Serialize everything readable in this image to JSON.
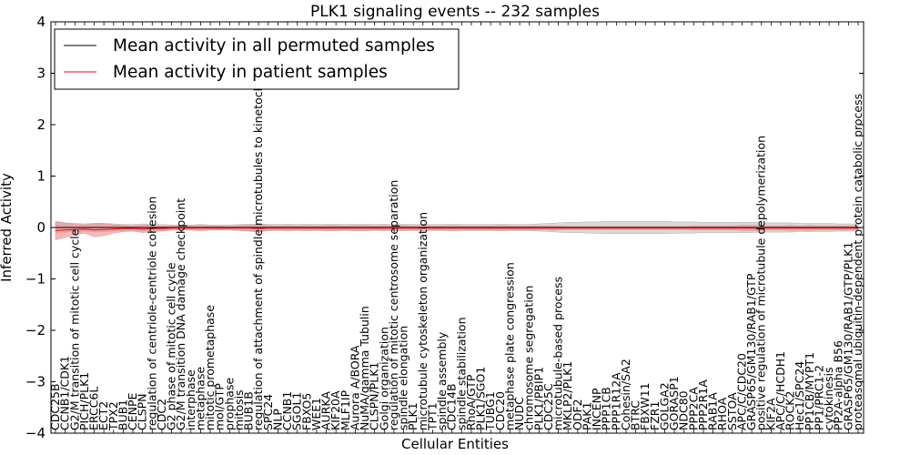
{
  "chart_data": {
    "type": "line",
    "title": "PLK1 signaling events -- 232 samples",
    "xlabel": "Cellular Entities",
    "ylabel": "Inferred Activity",
    "ylim": [
      -4,
      4
    ],
    "yticks": [
      -4,
      -3,
      -2,
      -1,
      0,
      1,
      2,
      3,
      4
    ],
    "legend_position": "top-left",
    "colors": {
      "permuted": "#000000",
      "patient": "#ff0000",
      "band_permuted": "#c8c8c8",
      "band_patient": "#f08080"
    },
    "series": [
      {
        "name": "Mean activity in all permuted samples",
        "color": "#000000"
      },
      {
        "name": "Mean activity in patient samples",
        "color": "#ff0000"
      }
    ],
    "entities": [
      "CDC25B",
      "CCNB1/CDK1",
      "G2/M transition of mitotic cell cycle",
      "PICH/PLK1",
      "ERCC6L",
      "ECT2",
      "TPX2",
      "BUB1",
      "CENPE",
      "CLSPN",
      "regulation of centriole-centriole cohesion",
      "CDC2",
      "G2 phase of mitotic cell cycle",
      "G2/M transition DNA damage checkpoint",
      "interphase",
      "metaphase",
      "mitotic prometaphase",
      "mol/GTP",
      "prophase",
      "mitosis",
      "BUB1B",
      "regulation of attachment of spindle microtubules to kinetochore",
      "SPC24",
      "NLP",
      "CCNB1",
      "SGOL1",
      "FBXO5",
      "WEE1",
      "AURKA",
      "KIF20A",
      "MLF1IP",
      "Aurora A/BORA",
      "NuMA/gamma Tubulin",
      "CLSPN/PLK1",
      "Golgi organization",
      "regulation of mitotic centrosome separation",
      "spindle elongation",
      "PLK1",
      "microtubule cytoskeleton organization",
      "TPT1",
      "spindle assembly",
      "CDC14B",
      "spindle stabilization",
      "RhoA/GTP",
      "PLK1/SGO1",
      "TUBG1",
      "CDC20",
      "metaphase plate congression",
      "NUDC",
      "chromosome segregation",
      "PLK1/PBIP1",
      "CDC25C",
      "microtubule-based process",
      "MKLP2/PLK1",
      "ODF2",
      "PAK1",
      "INCENP",
      "PPP1CB",
      "PPP1R12A",
      "Cohesin/SA2",
      "BTRC",
      "FBXW11",
      "FZR1",
      "GOLGA2",
      "GORASP1",
      "NDC80",
      "PPP2CA",
      "PPP2R1A",
      "RAB1A",
      "RHOA",
      "SSTOA",
      "APC/C/CDC20",
      "GRASP65/GM130/RAB1/GTP",
      "positive regulation of microtubule depolymerization",
      "KIF2A",
      "APC/C/HCDH1",
      "ROCK2",
      "Hec1/SPC24",
      "PP1CB/MYPT1",
      "PP1/PRC1-2",
      "cytokinesis",
      "PP2A-alpha B56",
      "GRASP65/GM130/RAB1/GTP/PLK1",
      "proteasomal ubiquitin-dependent protein catabolic process"
    ],
    "patient_mean": [
      -0.06,
      -0.05,
      -0.04,
      -0.03,
      -0.05,
      -0.04,
      -0.03,
      -0.02,
      -0.02,
      -0.03,
      -0.02,
      -0.02,
      -0.01,
      -0.01,
      -0.01,
      -0.01,
      -0.01,
      -0.01,
      -0.01,
      -0.01,
      -0.01,
      -0.02,
      -0.01,
      -0.01,
      -0.01,
      -0.01,
      -0.01,
      -0.01,
      -0.01,
      -0.01,
      -0.01,
      -0.01,
      -0.01,
      -0.01,
      -0.01,
      -0.01,
      -0.01,
      -0.01,
      -0.01,
      -0.01,
      -0.01,
      -0.01,
      -0.01,
      -0.01,
      -0.01,
      -0.01,
      -0.01,
      -0.01,
      -0.01,
      -0.01,
      -0.01,
      -0.01,
      -0.01,
      -0.01,
      -0.01,
      -0.01,
      -0.01,
      -0.01,
      -0.01,
      -0.01,
      -0.01,
      -0.01,
      -0.01,
      -0.01,
      -0.01,
      -0.01,
      -0.01,
      -0.01,
      -0.01,
      -0.01,
      -0.01,
      -0.01,
      -0.01,
      -0.01,
      -0.01,
      -0.01,
      -0.01,
      -0.01,
      -0.01,
      -0.01,
      -0.01,
      -0.01,
      -0.01,
      -0.01
    ],
    "patient_spread": [
      0.18,
      0.14,
      0.1,
      0.08,
      0.13,
      0.12,
      0.08,
      0.06,
      0.05,
      0.07,
      0.06,
      0.05,
      0.04,
      0.04,
      0.04,
      0.05,
      0.04,
      0.04,
      0.03,
      0.05,
      0.06,
      0.07,
      0.05,
      0.04,
      0.05,
      0.04,
      0.05,
      0.04,
      0.05,
      0.05,
      0.04,
      0.05,
      0.05,
      0.04,
      0.05,
      0.04,
      0.05,
      0.04,
      0.05,
      0.04,
      0.04,
      0.05,
      0.04,
      0.04,
      0.04,
      0.04,
      0.05,
      0.04,
      0.04,
      0.04,
      0.04,
      0.04,
      0.04,
      0.03,
      0.03,
      0.03,
      0.03,
      0.03,
      0.03,
      0.03,
      0.03,
      0.03,
      0.03,
      0.03,
      0.03,
      0.03,
      0.04,
      0.04,
      0.04,
      0.04,
      0.04,
      0.05,
      0.05,
      0.05,
      0.04,
      0.04,
      0.05,
      0.04,
      0.05,
      0.04,
      0.04,
      0.04,
      0.04,
      0.04
    ],
    "permuted_mean": [
      0,
      0,
      0,
      0,
      0,
      0,
      0,
      0,
      0,
      0,
      0,
      0,
      0,
      0,
      0,
      0,
      0,
      0,
      0,
      0,
      0,
      0,
      0,
      0,
      0,
      0,
      0,
      0,
      0,
      0,
      0,
      0,
      0,
      0,
      0,
      0,
      0,
      0,
      0,
      0,
      0,
      0,
      0,
      0,
      0,
      0,
      0,
      0,
      0,
      0,
      0,
      0,
      0,
      0,
      0,
      0,
      0,
      0,
      0,
      0,
      0,
      0,
      0,
      0,
      0,
      0,
      0,
      0,
      0,
      0,
      0,
      0,
      0,
      0,
      0,
      0,
      0,
      0,
      0,
      0,
      0,
      0,
      0,
      0
    ],
    "permuted_spread": [
      0.1,
      0.09,
      0.08,
      0.07,
      0.08,
      0.08,
      0.07,
      0.06,
      0.06,
      0.07,
      0.06,
      0.06,
      0.05,
      0.05,
      0.05,
      0.06,
      0.05,
      0.05,
      0.05,
      0.06,
      0.06,
      0.07,
      0.06,
      0.06,
      0.06,
      0.06,
      0.06,
      0.06,
      0.06,
      0.06,
      0.06,
      0.06,
      0.06,
      0.06,
      0.06,
      0.06,
      0.06,
      0.06,
      0.06,
      0.06,
      0.06,
      0.06,
      0.06,
      0.06,
      0.06,
      0.06,
      0.06,
      0.06,
      0.06,
      0.06,
      0.07,
      0.08,
      0.09,
      0.1,
      0.1,
      0.11,
      0.11,
      0.12,
      0.12,
      0.12,
      0.12,
      0.12,
      0.12,
      0.12,
      0.11,
      0.11,
      0.11,
      0.1,
      0.1,
      0.1,
      0.1,
      0.1,
      0.1,
      0.09,
      0.09,
      0.09,
      0.09,
      0.08,
      0.08,
      0.08,
      0.08,
      0.07,
      0.07,
      0.07
    ]
  }
}
